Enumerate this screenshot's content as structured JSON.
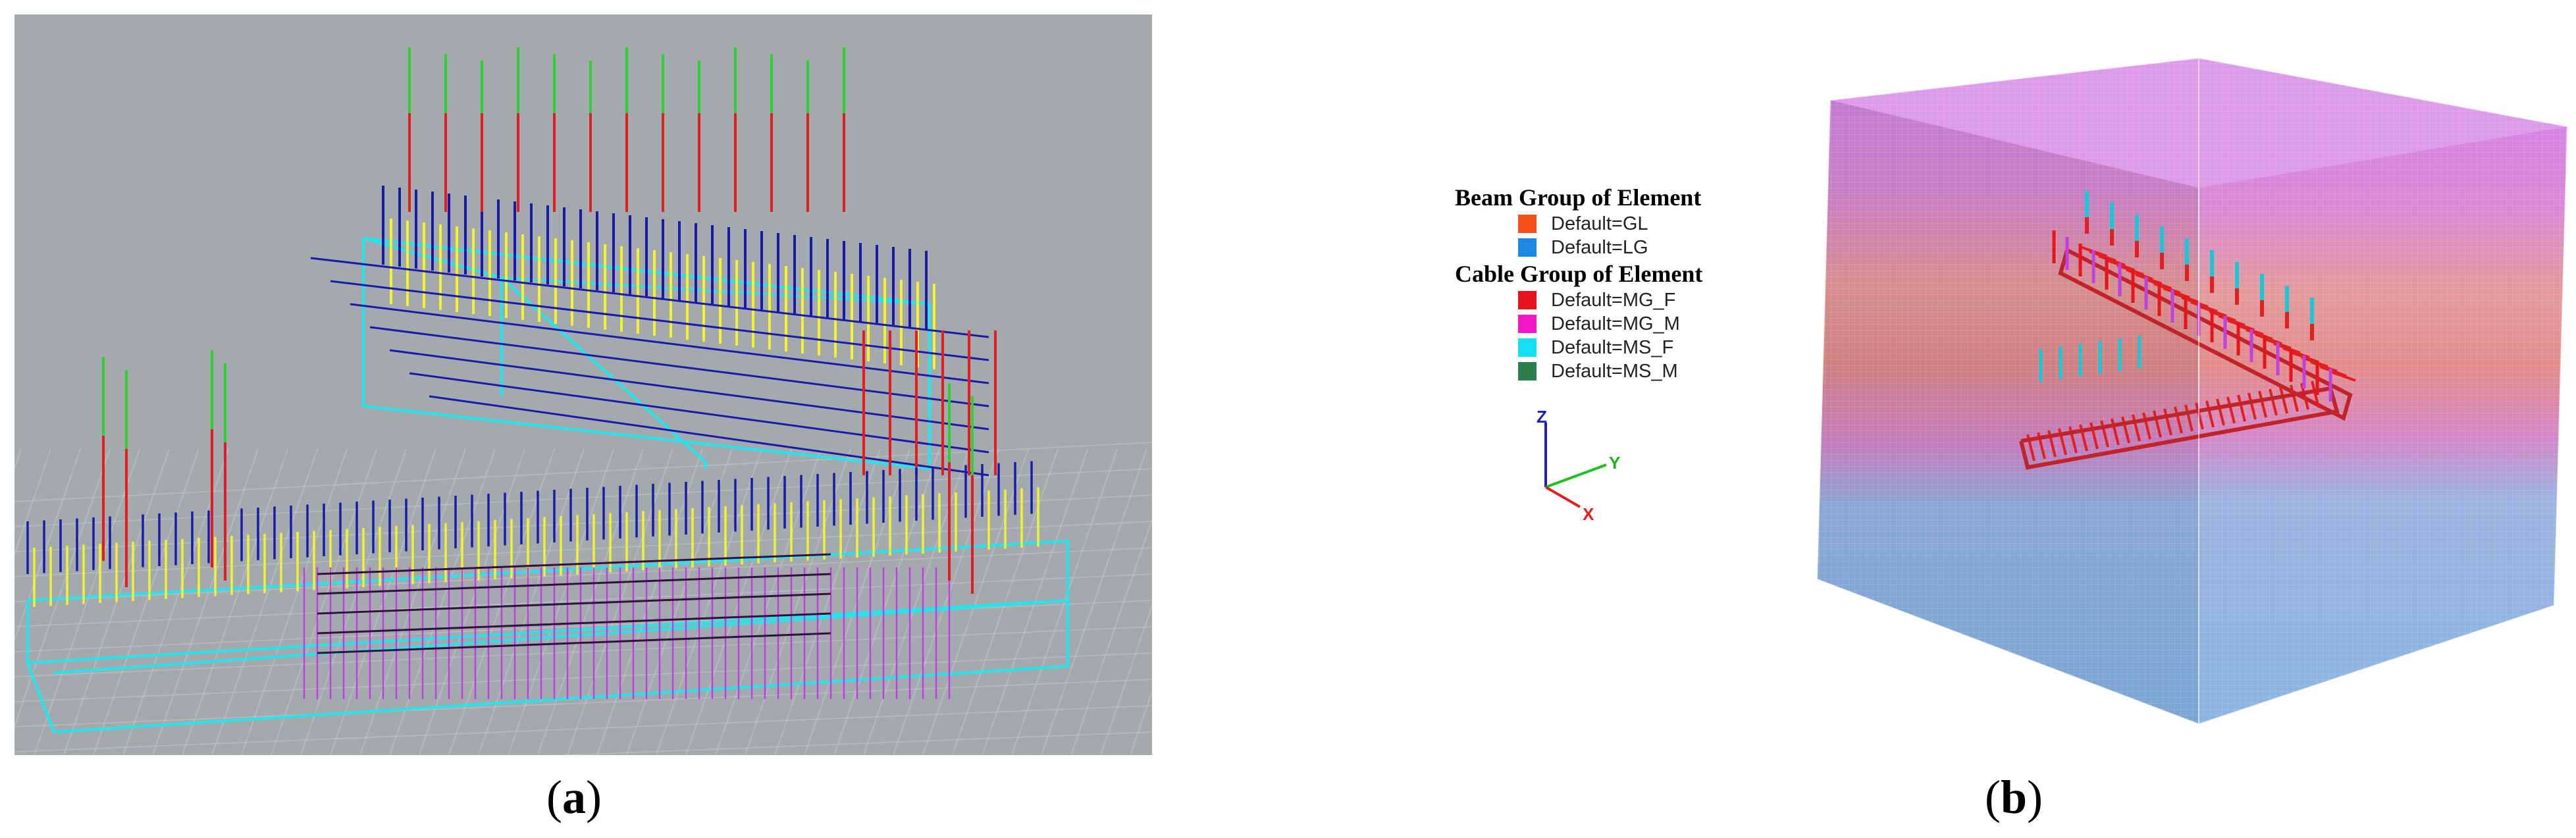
{
  "captions": {
    "a_open": "(",
    "a_letter": "a",
    "a_close": ")",
    "b_open": "(",
    "b_letter": "b",
    "b_close": ")"
  },
  "legend": {
    "beam_title": "Beam Group of Element",
    "beam_items": [
      {
        "label": "Default=GL",
        "color": "#f4511e"
      },
      {
        "label": "Default=LG",
        "color": "#1e88e5"
      }
    ],
    "cable_title": "Cable Group of Element",
    "cable_items": [
      {
        "label": "Default=MG_F",
        "color": "#e8141c"
      },
      {
        "label": "Default=MG_M",
        "color": "#f018c8"
      },
      {
        "label": "Default=MS_F",
        "color": "#16e0f0"
      },
      {
        "label": "Default=MS_M",
        "color": "#2e7d4f"
      }
    ]
  },
  "axes": {
    "z": "Z",
    "y": "Y",
    "x": "X"
  },
  "colors": {
    "viewport_bg": "#a4a9ae",
    "outline": "#22e6ee",
    "bolt_blue": "#1a1aa8",
    "bolt_yellow": "#f2f232",
    "anchor_red": "#e02020",
    "anchor_green": "#30d030",
    "anchor_magenta": "#c040e0"
  }
}
